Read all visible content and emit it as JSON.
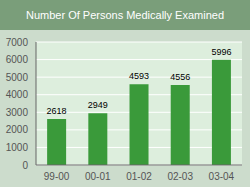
{
  "chart_data": {
    "type": "bar",
    "title": "Number Of Persons Medically Examined",
    "categories": [
      "99-00",
      "00-01",
      "01-02",
      "02-03",
      "03-04"
    ],
    "values": [
      2618,
      2949,
      4593,
      4556,
      5996
    ],
    "color": "#3a9a3a",
    "ylim": [
      0,
      7000
    ],
    "yticks": [
      0,
      1000,
      2000,
      3000,
      4000,
      5000,
      6000,
      7000
    ],
    "grid": true,
    "data_labels": true
  }
}
